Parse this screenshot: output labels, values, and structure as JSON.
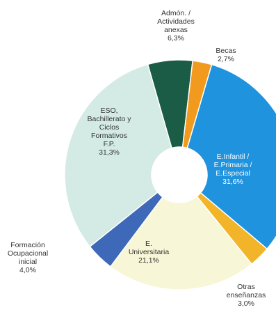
{
  "chart_data": {
    "type": "pie",
    "donut": true,
    "title": "",
    "legend": "none",
    "slices": [
      {
        "label_lines": [
          "Admón. /",
          "Actividades",
          "anexas",
          "6,3%"
        ],
        "value": 6.3,
        "color": "#1a5c45",
        "label_color": "#333333"
      },
      {
        "label_lines": [
          "Becas",
          "2,7%"
        ],
        "value": 2.7,
        "color": "#f29a1e",
        "label_color": "#333333"
      },
      {
        "label_lines": [
          "E.Infantil /",
          "E.Primaria /",
          "E.Especial",
          "31,6%"
        ],
        "value": 31.6,
        "color": "#1f93de",
        "label_color": "#ffffff"
      },
      {
        "label_lines": [
          "Otras",
          "enseñanzas",
          "3,0%"
        ],
        "value": 3.0,
        "color": "#f2b428",
        "label_color": "#333333"
      },
      {
        "label_lines": [
          "E.",
          "Universitaria",
          "21,1%"
        ],
        "value": 21.1,
        "color": "#f7f6d6",
        "label_color": "#333333"
      },
      {
        "label_lines": [
          "Formación",
          "Ocupacional",
          "inicial",
          "4,0%"
        ],
        "value": 4.0,
        "color": "#3e68b8",
        "label_color": "#333333"
      },
      {
        "label_lines": [
          "ESO,",
          "Bachillerato y",
          "Ciclos",
          "Formativos",
          "F.P.",
          "31,3%"
        ],
        "value": 31.3,
        "color": "#d3ebe4",
        "label_color": "#333333"
      }
    ]
  }
}
